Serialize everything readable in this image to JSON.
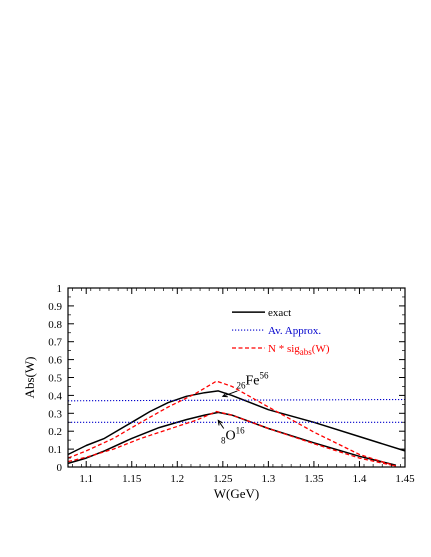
{
  "chart_data": {
    "type": "line",
    "xlabel": "W(GeV)",
    "ylabel": "Abs(W)",
    "xlim": [
      1.08,
      1.45
    ],
    "ylim": [
      0,
      1
    ],
    "x_ticks": [
      "1.1",
      "1.15",
      "1.2",
      "1.25",
      "1.3",
      "1.35",
      "1.4",
      "1.45"
    ],
    "y_ticks": [
      "0",
      "0.1",
      "0.2",
      "0.3",
      "0.4",
      "0.5",
      "0.6",
      "0.7",
      "0.8",
      "0.9",
      "1"
    ],
    "grid": false,
    "legend_position": "top-right",
    "legend": [
      {
        "label": "exact",
        "color": "#000000",
        "style": "solid"
      },
      {
        "label": "Av. Approx.",
        "color": "#0000cc",
        "style": "dotted"
      },
      {
        "label_main": "N * sig",
        "label_sub": "abs",
        "label_tail": "(W)",
        "color": "#ff0000",
        "style": "dashed"
      }
    ],
    "annotations": [
      {
        "pre_sub": "26",
        "main": "Fe",
        "sup": "56",
        "x": 1.265,
        "y": 0.46
      },
      {
        "pre_sub": "8",
        "main": "O",
        "sup": "16",
        "x": 1.248,
        "y": 0.155
      }
    ],
    "series": [
      {
        "name": "exact",
        "element": "Fe56",
        "style": "solid",
        "color": "#000000",
        "x": [
          1.08,
          1.1,
          1.12,
          1.15,
          1.17,
          1.19,
          1.21,
          1.23,
          1.245,
          1.26,
          1.3,
          1.35,
          1.4,
          1.45
        ],
        "y": [
          0.07,
          0.12,
          0.16,
          0.25,
          0.31,
          0.36,
          0.395,
          0.415,
          0.425,
          0.4,
          0.32,
          0.25,
          0.17,
          0.09
        ]
      },
      {
        "name": "exact",
        "element": "O16",
        "style": "solid",
        "color": "#000000",
        "x": [
          1.08,
          1.1,
          1.12,
          1.15,
          1.18,
          1.21,
          1.23,
          1.245,
          1.26,
          1.3,
          1.35,
          1.4,
          1.44
        ],
        "y": [
          0.02,
          0.05,
          0.09,
          0.16,
          0.22,
          0.265,
          0.29,
          0.305,
          0.29,
          0.215,
          0.135,
          0.06,
          0.01
        ]
      },
      {
        "name": "Av. Approx.",
        "element": "Fe56",
        "style": "dotted",
        "color": "#0000cc",
        "x": [
          1.08,
          1.45
        ],
        "y": [
          0.37,
          0.377
        ]
      },
      {
        "name": "Av. Approx.",
        "element": "O16",
        "style": "dotted",
        "color": "#0000cc",
        "x": [
          1.08,
          1.45
        ],
        "y": [
          0.25,
          0.25
        ]
      },
      {
        "name": "N * sig_abs(W)",
        "element": "Fe56",
        "style": "dashed",
        "color": "#ff0000",
        "x": [
          1.08,
          1.1,
          1.13,
          1.16,
          1.19,
          1.22,
          1.243,
          1.26,
          1.3,
          1.35,
          1.4,
          1.44
        ],
        "y": [
          0.05,
          0.09,
          0.16,
          0.25,
          0.335,
          0.41,
          0.48,
          0.45,
          0.335,
          0.195,
          0.07,
          0.005
        ]
      },
      {
        "name": "N * sig_abs(W)",
        "element": "O16",
        "style": "dashed",
        "color": "#ff0000",
        "x": [
          1.08,
          1.1,
          1.13,
          1.16,
          1.19,
          1.22,
          1.243,
          1.26,
          1.3,
          1.35,
          1.4,
          1.44
        ],
        "y": [
          0.03,
          0.055,
          0.1,
          0.16,
          0.21,
          0.26,
          0.31,
          0.29,
          0.215,
          0.13,
          0.05,
          0.005
        ]
      }
    ]
  }
}
